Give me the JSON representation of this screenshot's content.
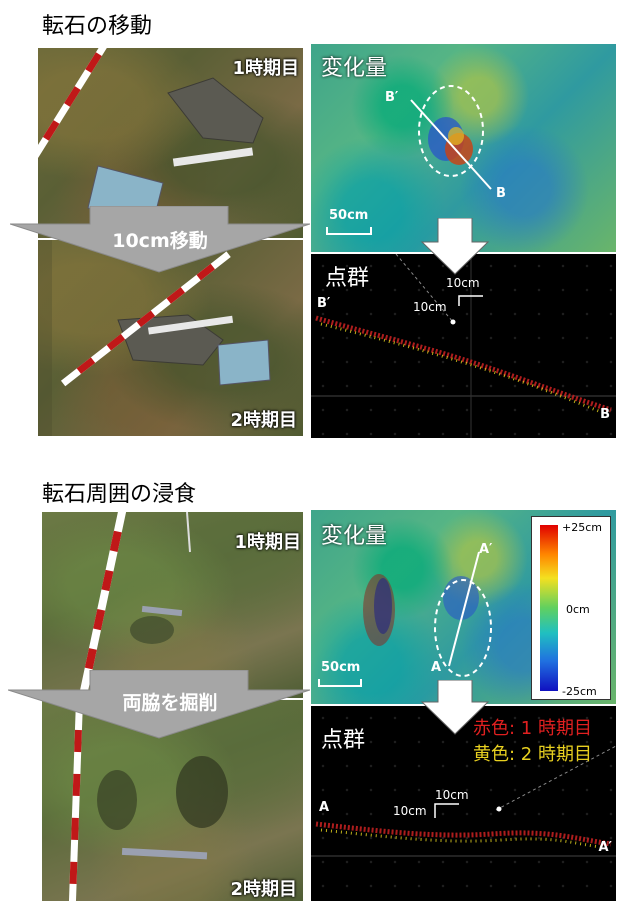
{
  "section1": {
    "title": "転石の移動",
    "phase1_label": "1時期目",
    "phase2_label": "2時期目",
    "move_label": "10cm移動",
    "change_title": "変化量",
    "scale_label": "50cm",
    "profile_start": "B′",
    "profile_end": "B",
    "pointcloud_title": "点群",
    "pc_start": "B′",
    "pc_end": "B",
    "pc_scale_h": "10cm",
    "pc_scale_v": "10cm"
  },
  "section2": {
    "title": "転石周囲の浸食",
    "phase1_label": "1時期目",
    "phase2_label": "2時期目",
    "move_label": "両脇を掘削",
    "change_title": "変化量",
    "scale_label": "50cm",
    "profile_start": "A",
    "profile_end": "A′",
    "pointcloud_title": "点群",
    "pc_start": "A",
    "pc_end": "A′",
    "pc_scale_h": "10cm",
    "pc_scale_v": "10cm",
    "legend_red": "赤色: 1 時期目",
    "legend_yellow": "黄色: 2 時期目"
  },
  "colorbar": {
    "max_label": "+25cm",
    "mid_label": "0cm",
    "min_label": "-25cm"
  },
  "colors": {
    "arrow": "#a6a6a6",
    "earlier_points": "#e02020",
    "later_points": "#e8d020"
  }
}
